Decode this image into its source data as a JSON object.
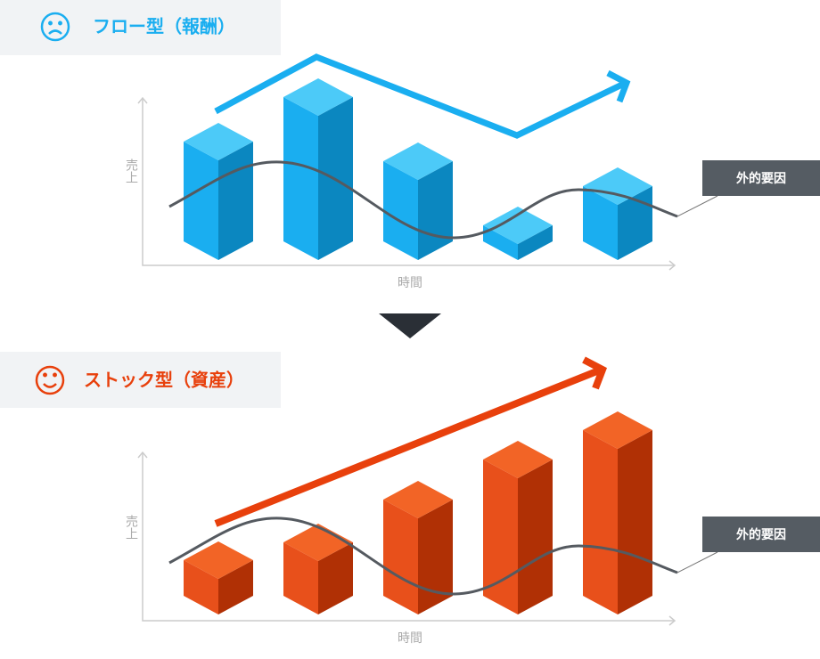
{
  "sections": [
    {
      "title": "フロー型（報酬）",
      "y_axis": "売上",
      "x_axis": "時間",
      "annotation": "外的要因"
    },
    {
      "title": "ストック型（資産）",
      "y_axis": "売上",
      "x_axis": "時間",
      "annotation": "外的要因"
    }
  ]
}
